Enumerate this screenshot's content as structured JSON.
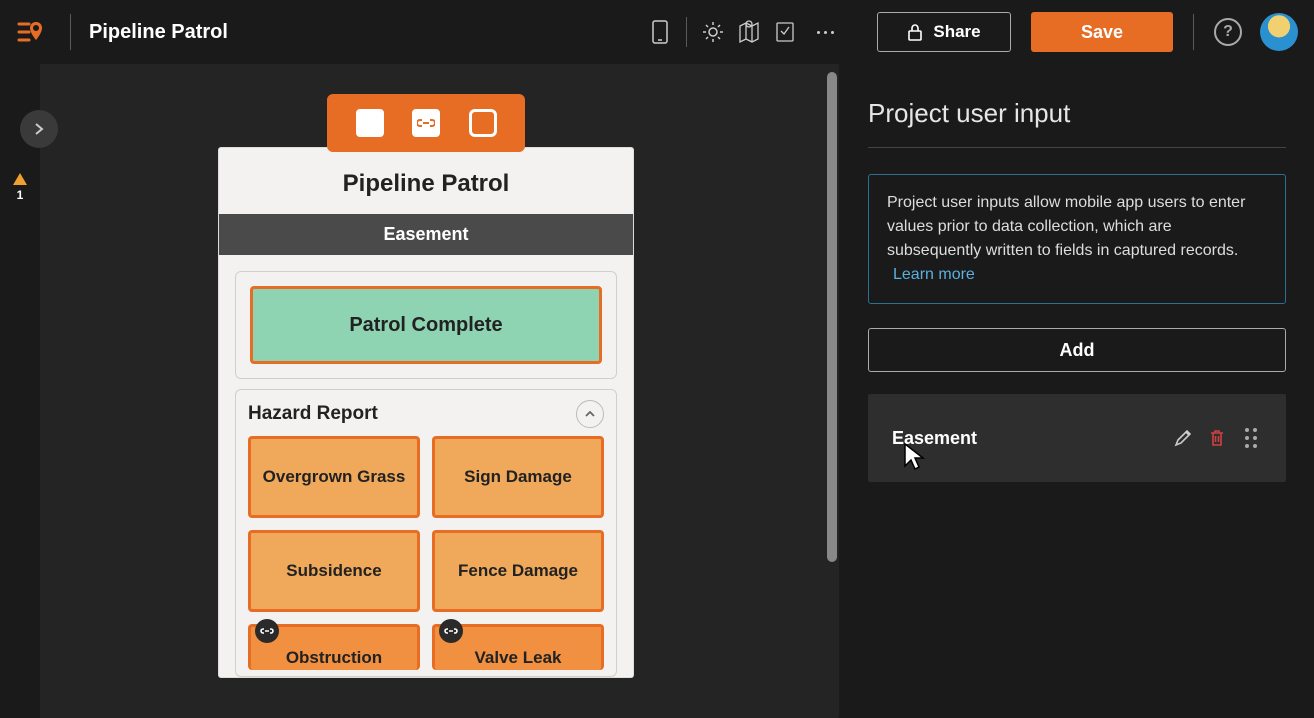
{
  "colors": {
    "accent": "#e76d25",
    "bg": "#1a1a1a",
    "canvas": "#242424",
    "hazard_fill": "#f0a85a",
    "hazard_fill_cut": "#f09040",
    "primary_fill": "#8ed4b3",
    "outline_orange": "#e76d25",
    "info_border": "#2a7090",
    "link": "#5ab0e0",
    "delete": "#d04040"
  },
  "topbar": {
    "app_title": "Pipeline Patrol",
    "share_label": "Share",
    "save_label": "Save",
    "help_glyph": "?"
  },
  "gutter": {
    "warning_count": "1"
  },
  "preview": {
    "title": "Pipeline Patrol",
    "subheader": "Easement",
    "primary_button": "Patrol Complete",
    "section_title": "Hazard Report",
    "hazards": [
      {
        "label": "Overgrown Grass",
        "linked": false
      },
      {
        "label": "Sign Damage",
        "linked": false
      },
      {
        "label": "Subsidence",
        "linked": false
      },
      {
        "label": "Fence Damage",
        "linked": false
      },
      {
        "label": "Obstruction",
        "linked": true
      },
      {
        "label": "Valve Leak",
        "linked": true
      }
    ]
  },
  "panel": {
    "title": "Project user input",
    "info_text": "Project user inputs allow mobile app users to enter values prior to data collection, which are subsequently written to fields in captured records.",
    "learn_more": "Learn more",
    "add_label": "Add",
    "inputs": [
      {
        "label": "Easement"
      }
    ]
  }
}
